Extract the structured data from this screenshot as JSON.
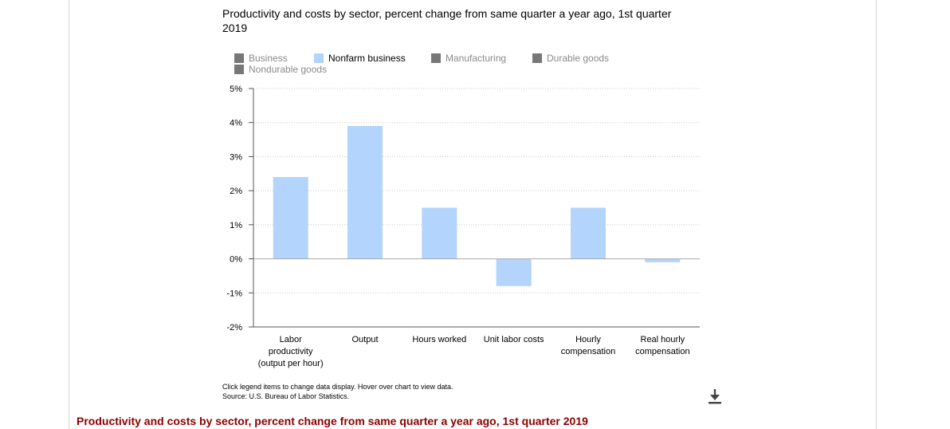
{
  "title": "Productivity and costs by sector, percent change from same quarter a year ago, 1st quarter 2019",
  "legend": [
    {
      "label": "Business",
      "color": "#777777",
      "active": false
    },
    {
      "label": "Nonfarm business",
      "color": "#b3d4fc",
      "active": true
    },
    {
      "label": "Manufacturing",
      "color": "#777777",
      "active": false
    },
    {
      "label": "Durable goods",
      "color": "#777777",
      "active": false
    },
    {
      "label": "Nondurable goods",
      "color": "#777777",
      "active": false
    }
  ],
  "note": "Click legend items to change data display. Hover over chart to view data.",
  "source": "Source: U.S. Bureau of Labor Statistics.",
  "download_icon": "download-icon",
  "bottom_heading": "Productivity and costs by sector, percent change from same quarter a year ago, 1st quarter 2019",
  "chart_data": {
    "type": "bar",
    "title": "Productivity and costs by sector, percent change from same quarter a year ago, 1st quarter 2019",
    "categories": [
      [
        "Labor",
        "productivity",
        "(output per hour)"
      ],
      [
        "Output"
      ],
      [
        "Hours worked"
      ],
      [
        "Unit labor costs"
      ],
      [
        "Hourly",
        "compensation"
      ],
      [
        "Real hourly",
        "compensation"
      ]
    ],
    "series": [
      {
        "name": "Nonfarm business",
        "color": "#b3d4fc",
        "values": [
          2.4,
          3.9,
          1.5,
          -0.8,
          1.5,
          -0.1
        ]
      }
    ],
    "ylim": [
      -2,
      5
    ],
    "yticks": [
      -2,
      -1,
      0,
      1,
      2,
      3,
      4,
      5
    ],
    "ytick_labels": [
      "-2%",
      "-1%",
      "0%",
      "1%",
      "2%",
      "3%",
      "4%",
      "5%"
    ],
    "grid": true,
    "legend_position": "top"
  }
}
